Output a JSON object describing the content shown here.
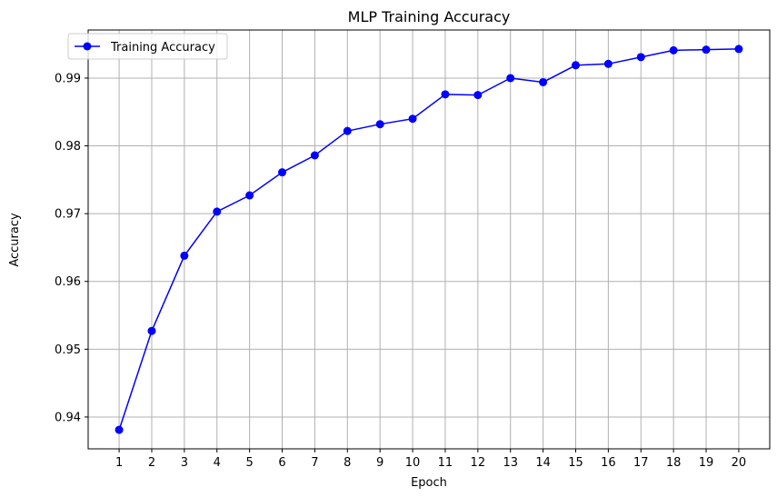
{
  "chart_data": {
    "type": "line",
    "title": "MLP Training Accuracy",
    "xlabel": "Epoch",
    "ylabel": "Accuracy",
    "x": [
      1,
      2,
      3,
      4,
      5,
      6,
      7,
      8,
      9,
      10,
      11,
      12,
      13,
      14,
      15,
      16,
      17,
      18,
      19,
      20
    ],
    "xticks": [
      "1",
      "2",
      "3",
      "4",
      "5",
      "6",
      "7",
      "8",
      "9",
      "10",
      "11",
      "12",
      "13",
      "14",
      "15",
      "16",
      "17",
      "18",
      "19",
      "20"
    ],
    "yticks": [
      "0.94",
      "0.95",
      "0.96",
      "0.97",
      "0.98",
      "0.99"
    ],
    "ytick_values": [
      0.94,
      0.95,
      0.96,
      0.97,
      0.98,
      0.99
    ],
    "xlim": [
      0.05,
      20.95
    ],
    "ylim": [
      0.9353,
      0.9971
    ],
    "grid": true,
    "legend_position": "top-left",
    "series": [
      {
        "name": "Training Accuracy",
        "color": "#0000ff",
        "marker": "circle",
        "values": [
          0.9381,
          0.9527,
          0.9638,
          0.9703,
          0.9727,
          0.9761,
          0.9786,
          0.9822,
          0.9832,
          0.984,
          0.9876,
          0.9875,
          0.99,
          0.9894,
          0.9919,
          0.9921,
          0.9931,
          0.9941,
          0.9942,
          0.9943
        ]
      }
    ]
  }
}
